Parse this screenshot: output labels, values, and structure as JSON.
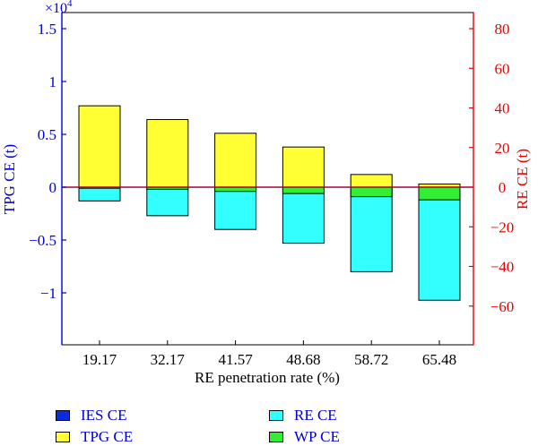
{
  "chart_data": {
    "type": "bar",
    "xlabel": "RE penetration rate (%)",
    "ylabel_left": "TPG CE  (t)",
    "ylabel_right": "RE CE (t)",
    "left_axis_multiplier": "×10",
    "left_axis_multiplier_exp": "4",
    "categories": [
      "19.17",
      "32.17",
      "41.57",
      "48.68",
      "58.72",
      "65.48"
    ],
    "ylim_left": [
      -1.5,
      1.5
    ],
    "yticks_left": [
      -1,
      -0.5,
      0,
      0.5,
      1,
      1.5
    ],
    "ytick_labels_left": [
      "−1",
      "−0.5",
      "0",
      "0.5",
      "1",
      "1.5"
    ],
    "ylim_right": [
      -80,
      80
    ],
    "yticks_right": [
      -60,
      -40,
      -20,
      0,
      20,
      40,
      60,
      80
    ],
    "ytick_labels_right": [
      "−60",
      "−40",
      "−20",
      "0",
      "20",
      "40",
      "60",
      "80"
    ],
    "series": [
      {
        "name": "IES CE",
        "axis": "left",
        "color": "#0a2be0",
        "values": [
          0,
          0,
          0,
          0,
          0,
          0
        ]
      },
      {
        "name": "TPG CE",
        "axis": "left",
        "color": "#ffff33",
        "values": [
          0.77,
          0.64,
          0.51,
          0.38,
          0.12,
          0.03
        ]
      },
      {
        "name": "RE CE",
        "axis": "left",
        "color": "#33ffff",
        "values": [
          -0.13,
          -0.27,
          -0.4,
          -0.53,
          -0.8,
          -1.07
        ]
      },
      {
        "name": "WP CE",
        "axis": "left",
        "color": "#33ee33",
        "values": [
          -0.01,
          -0.02,
          -0.04,
          -0.06,
          -0.09,
          -0.12
        ]
      }
    ],
    "zero_line_color": "#aa0033",
    "left_axis_color": "#0000dd",
    "right_axis_color": "#ee0000",
    "legend_position": "bottom",
    "grid": false
  }
}
